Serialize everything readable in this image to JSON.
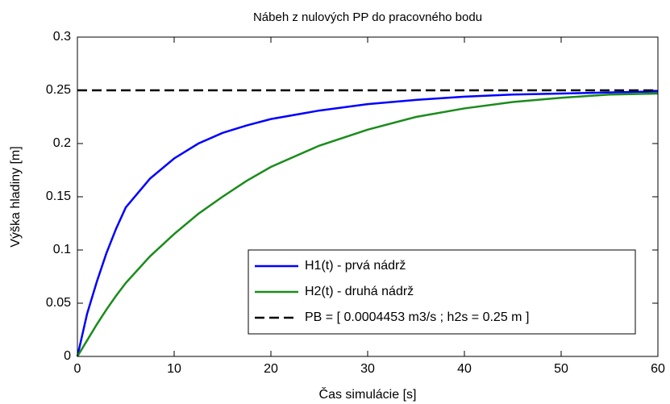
{
  "chart_data": {
    "type": "line",
    "title": "Nábeh z nulových PP do pracovného bodu",
    "x_label": "Čas simulácie [s]",
    "y_label": "Výška hladiny [m]",
    "x": [
      0,
      1,
      2,
      3,
      4,
      5,
      7.5,
      10,
      12.5,
      15,
      17.5,
      20,
      25,
      30,
      35,
      40,
      45,
      50,
      55,
      60
    ],
    "series": [
      {
        "name": "H1(t) - prvá nádrž",
        "color": "#0000ff",
        "dash": false,
        "values": [
          0,
          0.04,
          0.07,
          0.097,
          0.12,
          0.14,
          0.167,
          0.186,
          0.2,
          0.21,
          0.217,
          0.223,
          0.231,
          0.237,
          0.241,
          0.244,
          0.246,
          0.247,
          0.248,
          0.249
        ]
      },
      {
        "name": "H2(t) - druhá nádrž",
        "color": "#1a8c1a",
        "dash": false,
        "values": [
          0,
          0.015,
          0.03,
          0.044,
          0.057,
          0.069,
          0.094,
          0.115,
          0.134,
          0.15,
          0.165,
          0.178,
          0.198,
          0.213,
          0.225,
          0.233,
          0.239,
          0.243,
          0.246,
          0.247
        ]
      },
      {
        "name": "PB = [ 0.0004453 m3/s ; h2s = 0.25 m ]",
        "color": "#000000",
        "dash": true,
        "values": [
          0.25,
          0.25,
          0.25,
          0.25,
          0.25,
          0.25,
          0.25,
          0.25,
          0.25,
          0.25,
          0.25,
          0.25,
          0.25,
          0.25,
          0.25,
          0.25,
          0.25,
          0.25,
          0.25,
          0.25
        ]
      }
    ],
    "xlim": [
      0,
      60
    ],
    "xticks": [
      0,
      10,
      20,
      30,
      40,
      50,
      60
    ],
    "ylim": [
      0,
      0.3
    ],
    "yticks": [
      0,
      0.05,
      0.1,
      0.15,
      0.2,
      0.25,
      0.3
    ],
    "grid": false,
    "legend": "lower right"
  }
}
